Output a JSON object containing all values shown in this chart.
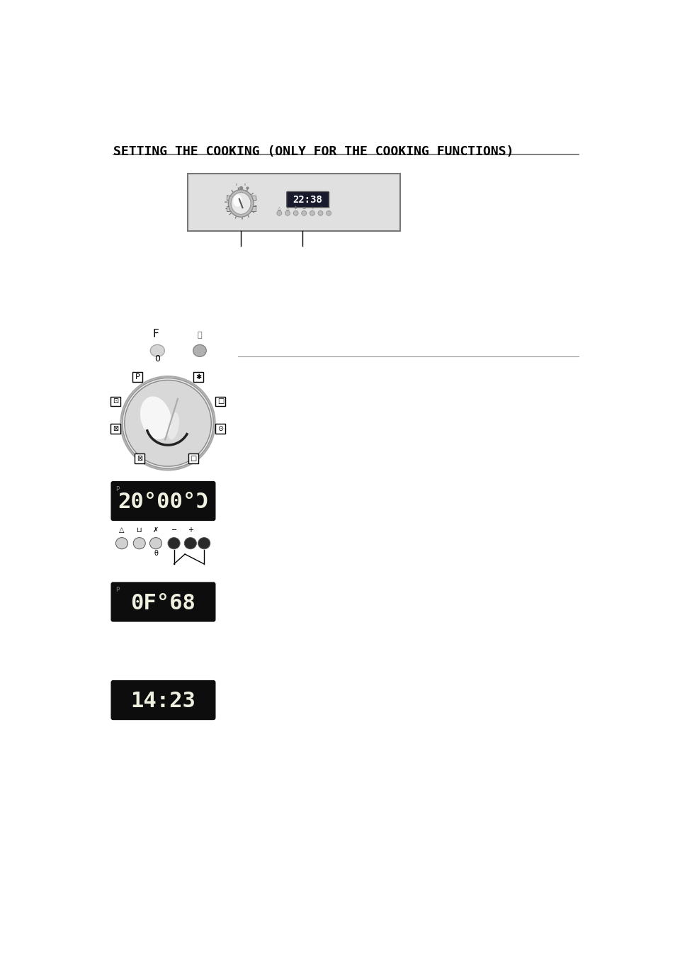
{
  "title": "SETTING THE COOKING (ONLY FOR THE COOKING FUNCTIONS)",
  "bg_color": "#ffffff",
  "panel_bg": "#e0e0e0",
  "display_text_1": "22:38",
  "display_bg_1": "#2a2a3a",
  "display_text_2": "20 00 C",
  "display_text_3": "0F  68",
  "display_text_4": "14:23",
  "display_bg": "#111111"
}
